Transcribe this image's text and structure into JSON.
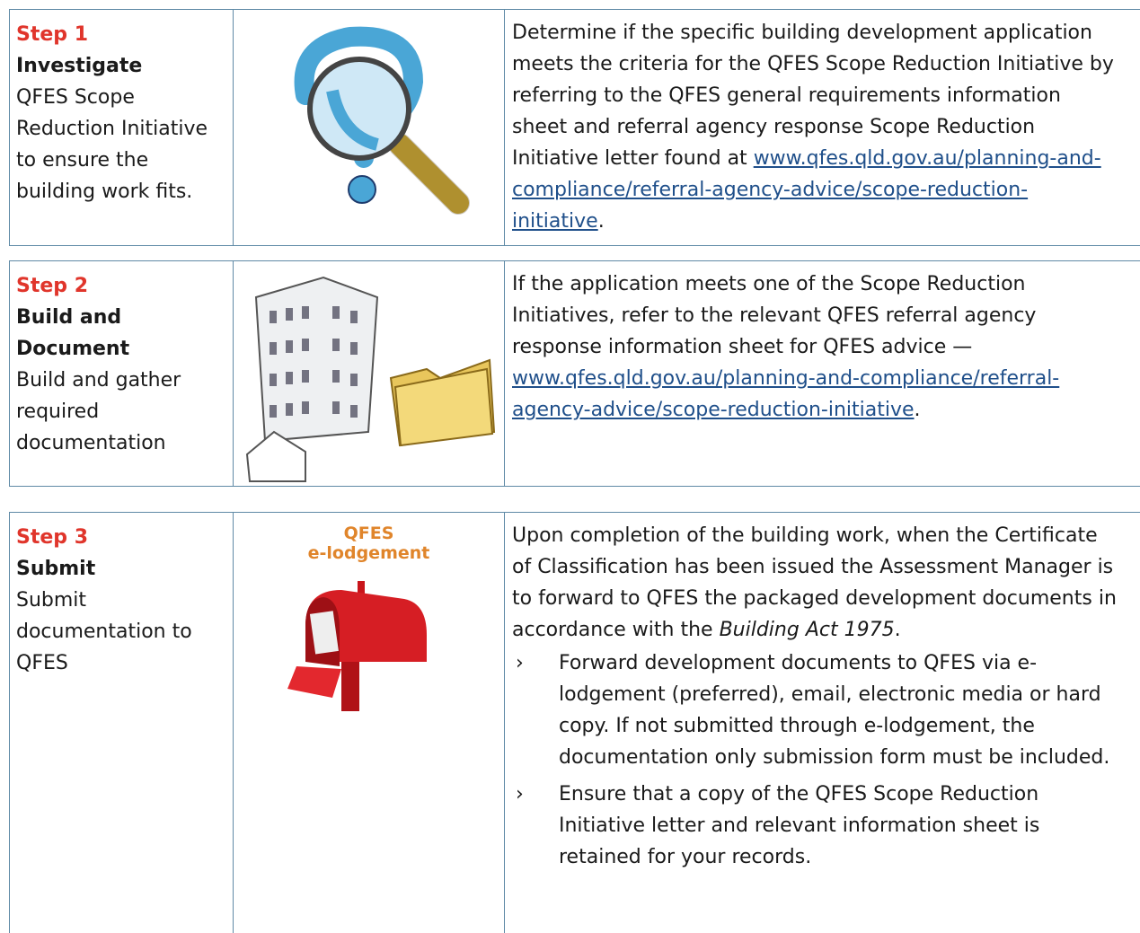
{
  "steps": [
    {
      "step": "Step 1",
      "title": "Investigate",
      "summary": "QFES Scope Reduction Initiative to ensure the building work fits.",
      "details": {
        "text": "Determine if the specific building development application meets the criteria for the QFES Scope Reduction Initiative by referring to the QFES general requirements information sheet and referral agency response Scope Reduction Initiative letter found at ",
        "link": "www.qfes.qld.gov.au/planning-and-compliance/referral-agency-advice/scope-reduction-initiative",
        "end": "."
      }
    },
    {
      "step": "Step 2",
      "title": "Build and Document",
      "summary": "Build and gather required documentation",
      "details": {
        "text": "If the application meets one of the Scope Reduction Initiatives, refer to the relevant QFES referral agency response information sheet for QFES advice — ",
        "link": "www.qfes.qld.gov.au/planning-and-compliance/referral-agency-advice/scope-reduction-initiative",
        "end": "."
      }
    },
    {
      "step": "Step 3",
      "title": "Submit",
      "summary": "Submit documentation to QFES",
      "image_label": [
        "QFES",
        "e-lodgement"
      ],
      "details": {
        "text": "Upon completion of the building work, when the Certificate of Classification has been issued the Assessment Manager is to forward to QFES the packaged development documents in accordance with the ",
        "italic": "Building Act 1975",
        "end": "."
      },
      "bullet_symbol": "›",
      "bullets": [
        "Forward development documents to QFES via e-lodgement (preferred), email, electronic media or hard copy. If not submitted through e-lodgement, the documentation only submission form must be included.",
        "Ensure that a copy of the QFES Scope Reduction Initiative letter and relevant information sheet is retained for your records."
      ]
    }
  ]
}
